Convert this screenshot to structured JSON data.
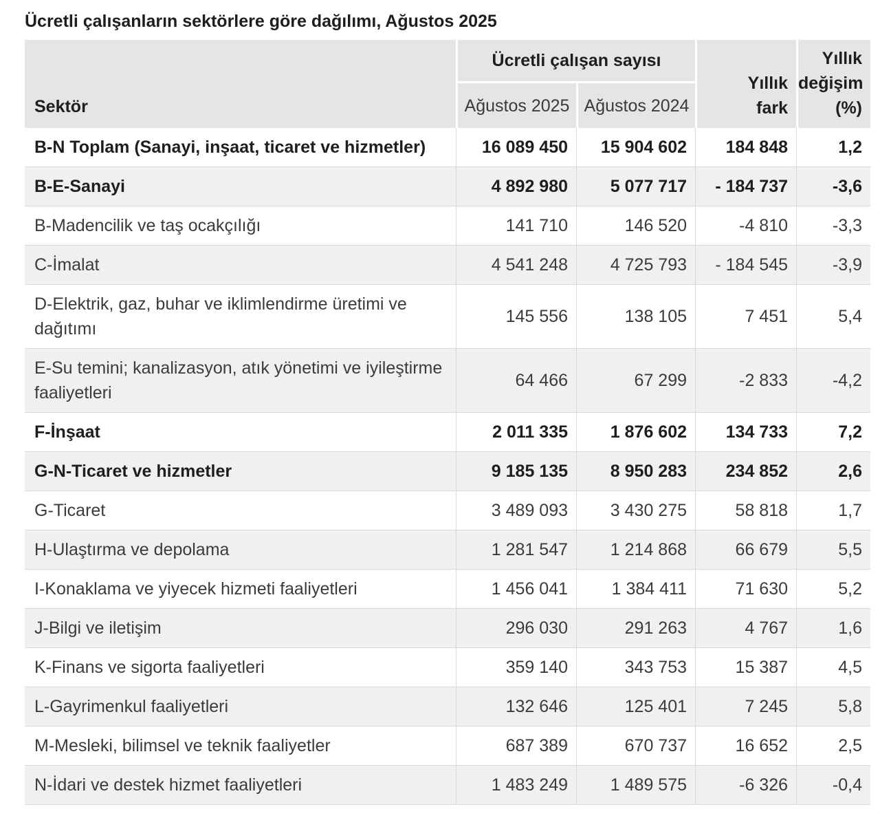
{
  "chart_data": {
    "type": "table",
    "title": "Ücretli çalışanların sektörlere göre dağılımı, Ağustos 2025",
    "headers": {
      "sector": "Sektör",
      "group": "Ücretli çalışan sayısı",
      "aug2025": "Ağustos 2025",
      "aug2024": "Ağustos 2024",
      "annual_diff": "Yıllık\nfark",
      "annual_change": "Yıllık\ndeğişim\n(%)"
    },
    "rows": [
      {
        "sector": "B-N Toplam (Sanayi, inşaat, ticaret ve hizmetler)",
        "aug2025": "16 089 450",
        "aug2024": "15 904 602",
        "diff": "184 848",
        "change": "1,2",
        "bold": true
      },
      {
        "sector": "B-E-Sanayi",
        "aug2025": "4 892 980",
        "aug2024": "5 077 717",
        "diff": "- 184 737",
        "change": "-3,6",
        "bold": true
      },
      {
        "sector": "B-Madencilik ve taş ocakçılığı",
        "aug2025": "141 710",
        "aug2024": "146 520",
        "diff": "-4 810",
        "change": "-3,3",
        "bold": false
      },
      {
        "sector": "C-İmalat",
        "aug2025": "4 541 248",
        "aug2024": "4 725 793",
        "diff": "- 184 545",
        "change": "-3,9",
        "bold": false
      },
      {
        "sector": "D-Elektrik, gaz, buhar ve iklimlendirme üretimi ve dağıtımı",
        "aug2025": "145 556",
        "aug2024": "138 105",
        "diff": "7 451",
        "change": "5,4",
        "bold": false
      },
      {
        "sector": "E-Su temini; kanalizasyon, atık yönetimi ve iyileştirme faaliyetleri",
        "aug2025": "64 466",
        "aug2024": "67 299",
        "diff": "-2 833",
        "change": "-4,2",
        "bold": false
      },
      {
        "sector": "F-İnşaat",
        "aug2025": "2 011 335",
        "aug2024": "1 876 602",
        "diff": "134 733",
        "change": "7,2",
        "bold": true
      },
      {
        "sector": "G-N-Ticaret ve hizmetler",
        "aug2025": "9 185 135",
        "aug2024": "8 950 283",
        "diff": "234 852",
        "change": "2,6",
        "bold": true
      },
      {
        "sector": "G-Ticaret",
        "aug2025": "3 489 093",
        "aug2024": "3 430 275",
        "diff": "58 818",
        "change": "1,7",
        "bold": false
      },
      {
        "sector": "H-Ulaştırma ve depolama",
        "aug2025": "1 281 547",
        "aug2024": "1 214 868",
        "diff": "66 679",
        "change": "5,5",
        "bold": false
      },
      {
        "sector": "I-Konaklama ve yiyecek hizmeti faaliyetleri",
        "aug2025": "1 456 041",
        "aug2024": "1 384 411",
        "diff": "71 630",
        "change": "5,2",
        "bold": false
      },
      {
        "sector": "J-Bilgi ve iletişim",
        "aug2025": "296 030",
        "aug2024": "291 263",
        "diff": "4 767",
        "change": "1,6",
        "bold": false
      },
      {
        "sector": "K-Finans ve sigorta faaliyetleri",
        "aug2025": "359 140",
        "aug2024": "343 753",
        "diff": "15 387",
        "change": "4,5",
        "bold": false
      },
      {
        "sector": "L-Gayrimenkul faaliyetleri",
        "aug2025": "132 646",
        "aug2024": "125 401",
        "diff": "7 245",
        "change": "5,8",
        "bold": false
      },
      {
        "sector": "M-Mesleki, bilimsel ve teknik faaliyetler",
        "aug2025": "687 389",
        "aug2024": "670 737",
        "diff": "16 652",
        "change": "2,5",
        "bold": false
      },
      {
        "sector": "N-İdari ve destek hizmet faaliyetleri",
        "aug2025": "1 483 249",
        "aug2024": "1 489 575",
        "diff": "-6 326",
        "change": "-0,4",
        "bold": false
      }
    ]
  },
  "colors": {
    "header_bg": "#e5e5e5",
    "row_alt_bg": "#f0f0f0",
    "grid_line": "#d9d9d9"
  }
}
